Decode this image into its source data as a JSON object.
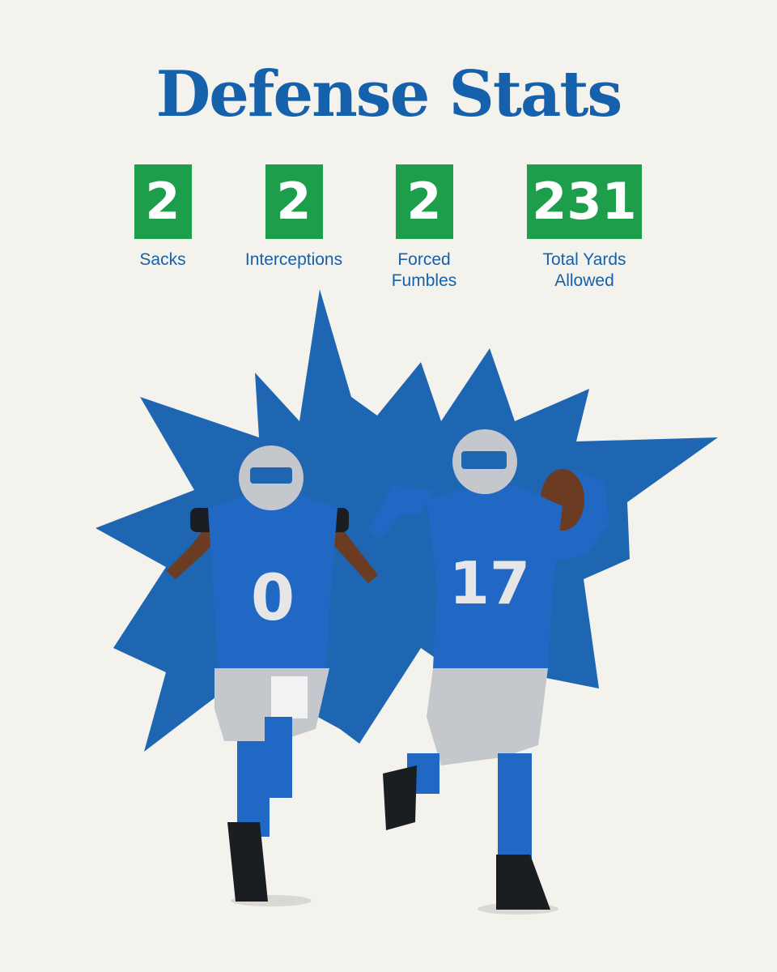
{
  "title": "Defense Stats",
  "stats": [
    {
      "value": "2",
      "label_line1": "Sacks",
      "label_line2": ""
    },
    {
      "value": "2",
      "label_line1": "Interceptions",
      "label_line2": ""
    },
    {
      "value": "2",
      "label_line1": "Forced",
      "label_line2": "Fumbles"
    },
    {
      "value": "231",
      "label_line1": "Total Yards",
      "label_line2": "Allowed"
    }
  ],
  "players": [
    {
      "number": "0"
    },
    {
      "number": "17"
    }
  ],
  "colors": {
    "background": "#f3f2ec",
    "title": "#1661ab",
    "stat_box": "#1d9e4a",
    "burst": "#1f66b2",
    "jersey": "#2068c4",
    "pants": "#c4c7cc"
  }
}
